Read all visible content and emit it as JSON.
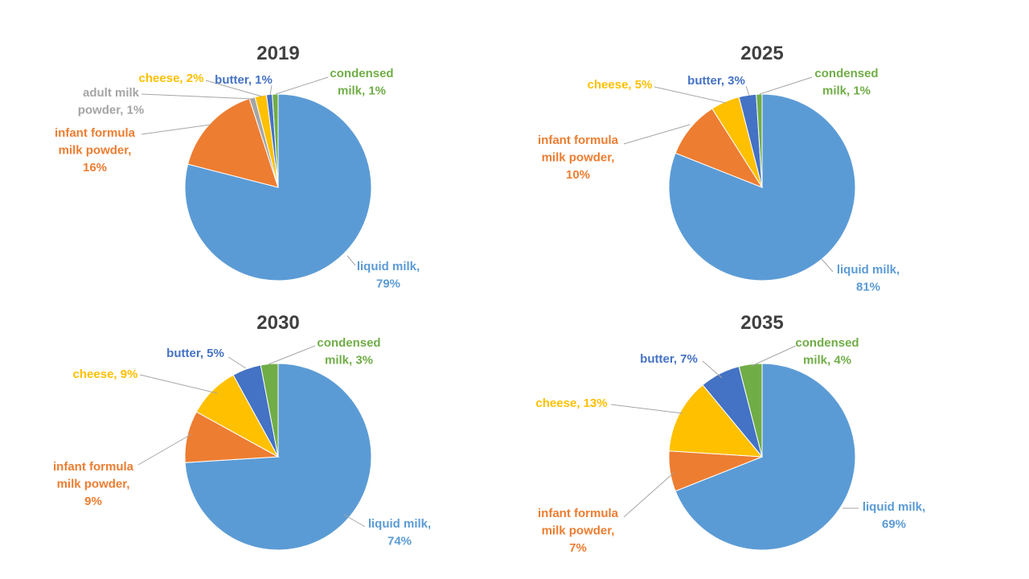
{
  "colors": {
    "liquid_milk": "#5b9bd5",
    "infant_formula": "#ed7d31",
    "adult_milk_powder": "#a5a5a5",
    "cheese": "#ffc000",
    "butter": "#4472c4",
    "condensed_milk": "#70ad47"
  },
  "chart_data": [
    {
      "type": "pie",
      "title": "2019",
      "slices": [
        {
          "key": "liquid_milk",
          "label_lines": [
            "liquid milk,",
            "79%"
          ],
          "value": 79
        },
        {
          "key": "infant_formula",
          "label_lines": [
            "infant formula",
            "milk powder,",
            "16%"
          ],
          "value": 16
        },
        {
          "key": "adult_milk_powder",
          "label_lines": [
            "adult milk",
            "powder, 1%"
          ],
          "value": 1
        },
        {
          "key": "cheese",
          "label_lines": [
            "cheese, 2%"
          ],
          "value": 2
        },
        {
          "key": "butter",
          "label_lines": [
            "butter, 1%"
          ],
          "value": 1
        },
        {
          "key": "condensed_milk",
          "label_lines": [
            "condensed",
            "milk, 1%"
          ],
          "value": 1
        }
      ]
    },
    {
      "type": "pie",
      "title": "2025",
      "slices": [
        {
          "key": "liquid_milk",
          "label_lines": [
            "liquid milk,",
            "81%"
          ],
          "value": 81
        },
        {
          "key": "infant_formula",
          "label_lines": [
            "infant formula",
            "milk powder,",
            "10%"
          ],
          "value": 10
        },
        {
          "key": "cheese",
          "label_lines": [
            "cheese, 5%"
          ],
          "value": 5
        },
        {
          "key": "butter",
          "label_lines": [
            "butter, 3%"
          ],
          "value": 3
        },
        {
          "key": "condensed_milk",
          "label_lines": [
            "condensed",
            "milk, 1%"
          ],
          "value": 1
        }
      ]
    },
    {
      "type": "pie",
      "title": "2030",
      "slices": [
        {
          "key": "liquid_milk",
          "label_lines": [
            "liquid milk,",
            "74%"
          ],
          "value": 74
        },
        {
          "key": "infant_formula",
          "label_lines": [
            "infant formula",
            "milk powder,",
            "9%"
          ],
          "value": 9
        },
        {
          "key": "cheese",
          "label_lines": [
            "cheese, 9%"
          ],
          "value": 9
        },
        {
          "key": "butter",
          "label_lines": [
            "butter, 5%"
          ],
          "value": 5
        },
        {
          "key": "condensed_milk",
          "label_lines": [
            "condensed",
            "milk, 3%"
          ],
          "value": 3
        }
      ]
    },
    {
      "type": "pie",
      "title": "2035",
      "slices": [
        {
          "key": "liquid_milk",
          "label_lines": [
            "liquid milk,",
            "69%"
          ],
          "value": 69
        },
        {
          "key": "infant_formula",
          "label_lines": [
            "infant formula",
            "milk powder,",
            "7%"
          ],
          "value": 7
        },
        {
          "key": "cheese",
          "label_lines": [
            "cheese, 13%"
          ],
          "value": 13
        },
        {
          "key": "butter",
          "label_lines": [
            "butter, 7%"
          ],
          "value": 7
        },
        {
          "key": "condensed_milk",
          "label_lines": [
            "condensed",
            "milk, 4%"
          ],
          "value": 4
        }
      ]
    }
  ]
}
